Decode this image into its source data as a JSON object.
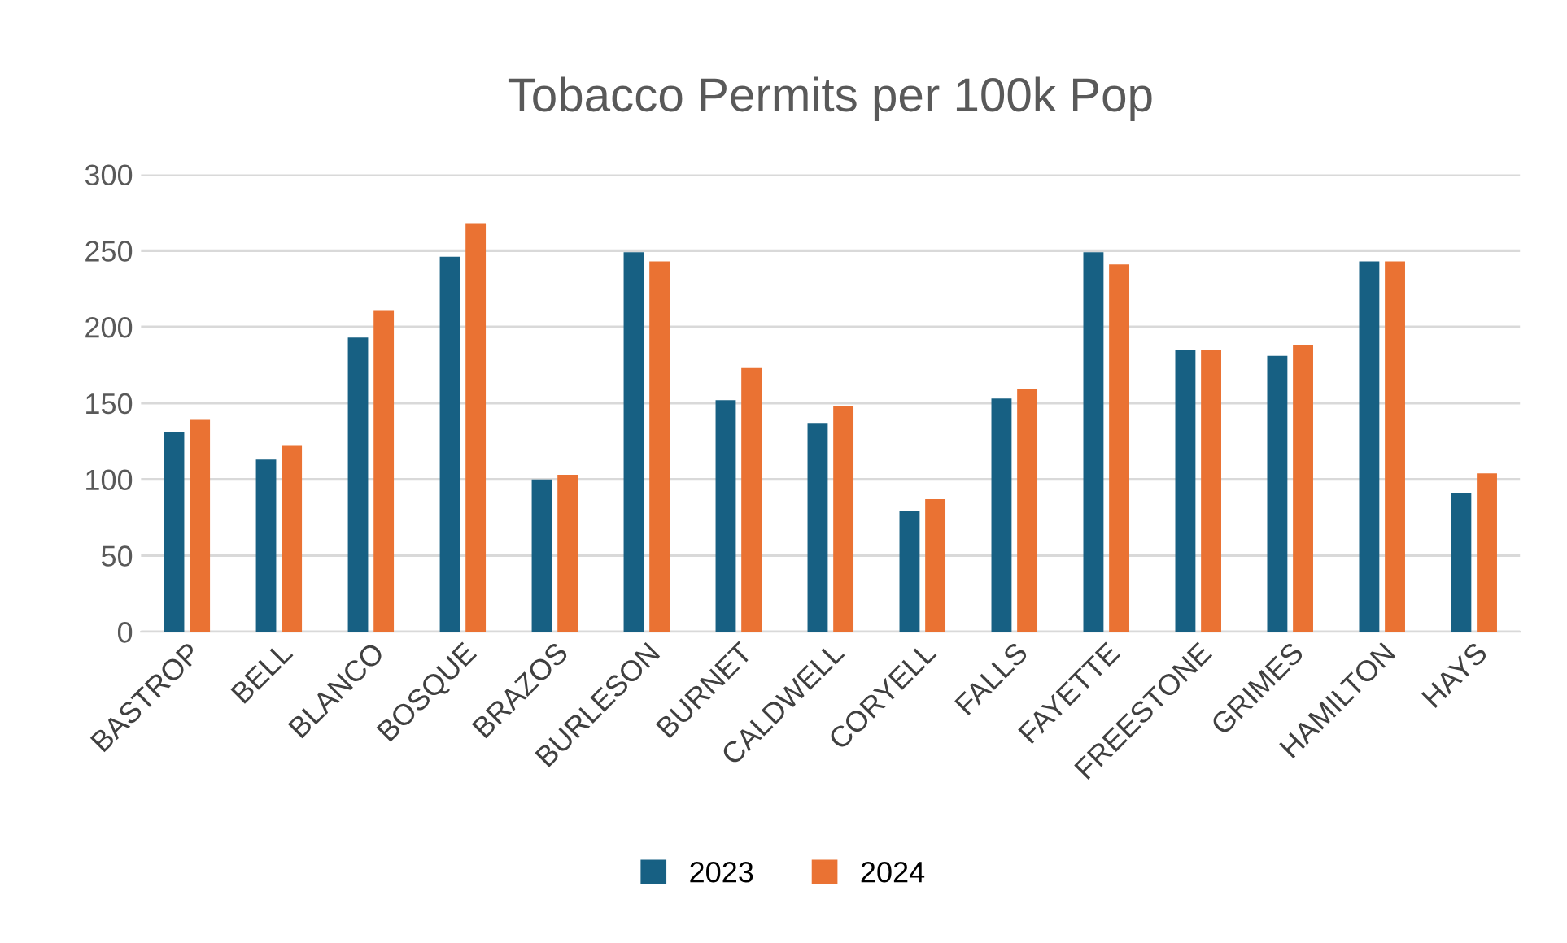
{
  "chart_data": {
    "type": "bar",
    "title": "Tobacco Permits per 100k Pop",
    "categories": [
      "BASTROP",
      "BELL",
      "BLANCO",
      "BOSQUE",
      "BRAZOS",
      "BURLESON",
      "BURNET",
      "CALDWELL",
      "CORYELL",
      "FALLS",
      "FAYETTE",
      "FREESTONE",
      "GRIMES",
      "HAMILTON",
      "HAYS"
    ],
    "series": [
      {
        "name": "2023",
        "color": "#176083",
        "values": [
          131,
          113,
          193,
          246,
          100,
          249,
          152,
          137,
          79,
          153,
          249,
          185,
          181,
          243,
          91
        ]
      },
      {
        "name": "2024",
        "color": "#ea7233",
        "values": [
          139,
          122,
          211,
          268,
          103,
          243,
          173,
          148,
          87,
          159,
          241,
          185,
          188,
          243,
          104
        ]
      }
    ],
    "ylim": [
      0,
      300
    ],
    "yticks": [
      0,
      50,
      100,
      150,
      200,
      250,
      300
    ],
    "grid": "y",
    "legend": "bottom"
  }
}
